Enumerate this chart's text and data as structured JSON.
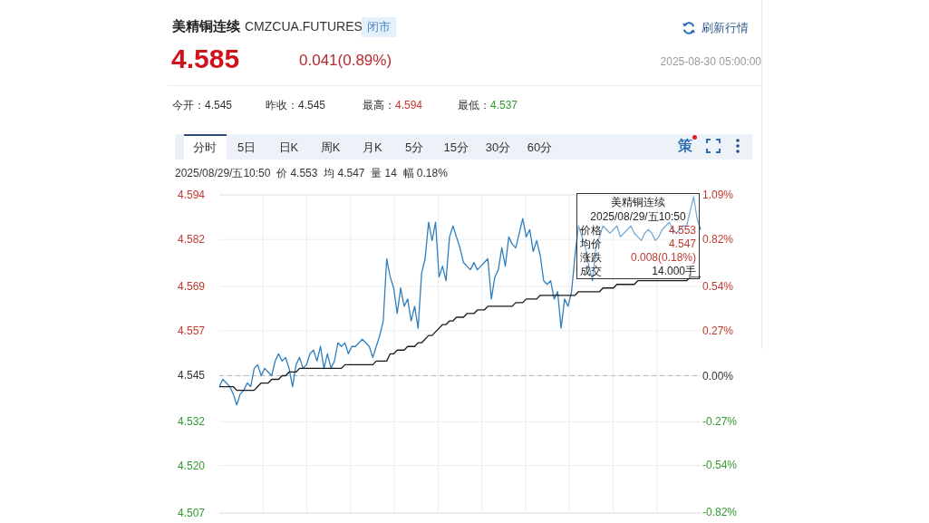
{
  "chart_data": {
    "type": "line",
    "title": "美精铜连续",
    "subtitle": "CMZCUA.FUTURES",
    "categories": [
      null,
      null,
      null,
      null,
      null,
      null,
      null,
      null,
      null,
      null,
      null,
      null,
      null,
      null,
      null,
      null,
      null,
      null,
      null,
      null,
      null,
      null,
      null,
      null,
      null,
      null,
      null,
      null,
      null,
      null,
      null,
      null,
      null,
      null,
      null,
      null,
      null,
      null,
      null,
      null,
      null,
      null,
      null,
      null,
      null,
      null,
      null,
      null,
      null,
      null,
      null,
      null,
      null,
      null,
      null,
      null,
      null,
      null,
      null,
      null,
      null,
      null,
      null,
      null,
      null,
      null,
      null,
      null,
      null,
      null,
      null,
      null,
      null,
      null,
      null,
      null,
      null,
      null,
      null,
      null,
      null,
      null,
      null,
      null,
      null,
      null,
      null,
      null,
      null,
      null,
      null,
      null,
      null,
      null,
      null,
      null,
      null,
      null,
      null,
      null,
      null,
      null,
      null,
      null,
      null,
      null,
      null,
      null,
      null,
      null,
      null,
      null,
      null,
      null,
      null,
      null,
      null,
      null,
      null,
      null,
      null,
      null,
      null,
      null,
      null,
      null,
      null,
      null,
      null,
      null,
      null,
      null,
      null,
      null,
      null,
      null,
      null,
      null,
      null
    ],
    "series": [
      {
        "color": "#2e7fc0",
        "values": [
          4.542,
          4.544,
          4.543,
          4.542,
          4.54,
          4.537,
          4.54,
          4.541,
          4.543,
          4.542,
          4.547,
          4.548,
          4.545,
          4.547,
          4.546,
          4.545,
          4.549,
          4.551,
          4.549,
          4.55,
          4.547,
          4.542,
          4.548,
          4.55,
          4.547,
          4.548,
          4.551,
          4.552,
          4.549,
          4.553,
          4.547,
          4.551,
          4.547,
          4.549,
          4.554,
          4.553,
          4.554,
          4.551,
          4.553,
          4.553,
          4.554,
          4.555,
          4.554,
          4.553,
          4.55,
          4.553,
          4.556,
          4.56,
          4.577,
          4.572,
          4.569,
          4.562,
          4.569,
          4.564,
          4.566,
          4.56,
          4.564,
          4.558,
          4.573,
          4.577,
          4.587,
          4.582,
          4.587,
          4.572,
          4.575,
          4.571,
          4.583,
          4.586,
          4.583,
          4.58,
          4.576,
          4.575,
          4.574,
          4.576,
          4.574,
          4.575,
          4.576,
          4.577,
          4.566,
          4.572,
          4.574,
          4.58,
          4.575,
          4.583,
          4.581,
          4.58,
          4.584,
          4.588,
          4.583,
          4.585,
          4.579,
          4.582,
          4.578,
          4.571,
          4.57,
          4.571,
          4.566,
          4.568,
          4.558,
          4.566,
          4.564,
          4.568,
          4.578,
          4.586,
          4.583,
          4.58,
          4.575,
          4.571,
          4.58,
          4.583,
          4.586,
          4.585,
          4.584,
          4.585,
          4.586,
          4.583,
          4.584,
          4.585,
          4.586,
          4.584,
          4.583,
          4.582,
          4.584,
          4.585,
          4.584,
          4.582,
          4.583,
          4.585,
          4.586,
          4.587,
          4.585,
          4.584,
          4.585,
          4.586,
          4.586,
          4.59,
          4.594,
          4.588,
          4.585
        ]
      },
      {
        "color": "#1a1a1a",
        "values": [
          4.542,
          4.542,
          4.542,
          4.542,
          4.542,
          4.541,
          4.541,
          4.541,
          4.541,
          4.541,
          4.541,
          4.542,
          4.543,
          4.543,
          4.543,
          4.544,
          4.544,
          4.544,
          4.545,
          4.545,
          4.546,
          4.546,
          4.546,
          4.547,
          4.547,
          4.547,
          4.547,
          4.547,
          4.547,
          4.547,
          4.547,
          4.547,
          4.547,
          4.547,
          4.547,
          4.547,
          4.548,
          4.548,
          4.548,
          4.548,
          4.548,
          4.548,
          4.548,
          4.548,
          4.548,
          4.549,
          4.549,
          4.549,
          4.549,
          4.551,
          4.551,
          4.552,
          4.552,
          4.552,
          4.553,
          4.553,
          4.553,
          4.554,
          4.554,
          4.555,
          4.556,
          4.556,
          4.557,
          4.558,
          4.559,
          4.559,
          4.56,
          4.56,
          4.561,
          4.561,
          4.561,
          4.562,
          4.562,
          4.562,
          4.563,
          4.563,
          4.563,
          4.564,
          4.564,
          4.564,
          4.564,
          4.564,
          4.564,
          4.564,
          4.564,
          4.565,
          4.565,
          4.565,
          4.566,
          4.566,
          4.566,
          4.566,
          4.567,
          4.567,
          4.567,
          4.567,
          4.567,
          4.567,
          4.567,
          4.567,
          4.567,
          4.567,
          4.567,
          4.568,
          4.568,
          4.568,
          4.568,
          4.568,
          4.568,
          4.568,
          4.569,
          4.569,
          4.569,
          4.569,
          4.57,
          4.57,
          4.57,
          4.57,
          4.57,
          4.57,
          4.571,
          4.571,
          4.571,
          4.571,
          4.571,
          4.571,
          4.571,
          4.571,
          4.571,
          4.571,
          4.571,
          4.571,
          4.571,
          4.571,
          4.571,
          4.572,
          4.572,
          4.572,
          4.572
        ]
      }
    ],
    "ylim": [
      4.5074,
      4.5945
    ],
    "yticks": [
      {
        "value": 4.5074,
        "label": "4.507"
      },
      {
        "value": 4.5204,
        "label": "4.520"
      },
      {
        "value": 4.5324,
        "label": "4.532"
      },
      4.545,
      {
        "value": 4.5573,
        "label": "4.557"
      },
      {
        "value": 4.5694,
        "label": "4.569"
      },
      {
        "value": 4.5823,
        "label": "4.582"
      },
      {
        "value": 4.5944,
        "label": "4.594"
      }
    ],
    "y2lim": [
      -0.827,
      1.09
    ],
    "y2ticks": [
      {
        "value": -0.824,
        "label": "-0.82%"
      },
      {
        "value": -0.54,
        "label": "-0.54%"
      },
      {
        "value": -0.274,
        "label": "-0.27%"
      },
      {
        "value": 0,
        "label": "0.00%"
      },
      {
        "value": 0.27,
        "label": "0.27%"
      },
      {
        "value": 0.54,
        "label": "0.54%"
      },
      {
        "value": 0.82,
        "label": "0.82%"
      },
      {
        "value": 1.09,
        "label": "1.09%"
      }
    ],
    "ref_lines": [
      {
        "axis": "y",
        "value": 4.545,
        "line_style": "dashed",
        "color": "#b5b5b5"
      }
    ],
    "grid": true,
    "marker": "none",
    "line_style": "solid",
    "annotations": [
      "闭市",
      "4.585",
      "0.041(0.89%)",
      "2025-08-30 05:00:00",
      "刷新行情",
      "今开：4.545",
      "昨收：4.545",
      "最高：4.594",
      "最低：4.537",
      "分时",
      "5日",
      "日K",
      "周K",
      "月K",
      "5分",
      "15分",
      "30分",
      "60分",
      "策",
      "2025/08/29/五10:50  价 4.553  均 4.547  量 14  幅 0.18%",
      "2025/08/29/五10:50",
      "价格",
      "4.553",
      "均价",
      "4.547",
      "涨跌",
      "0.008(0.18%)",
      "成交",
      "14.000手"
    ]
  }
}
